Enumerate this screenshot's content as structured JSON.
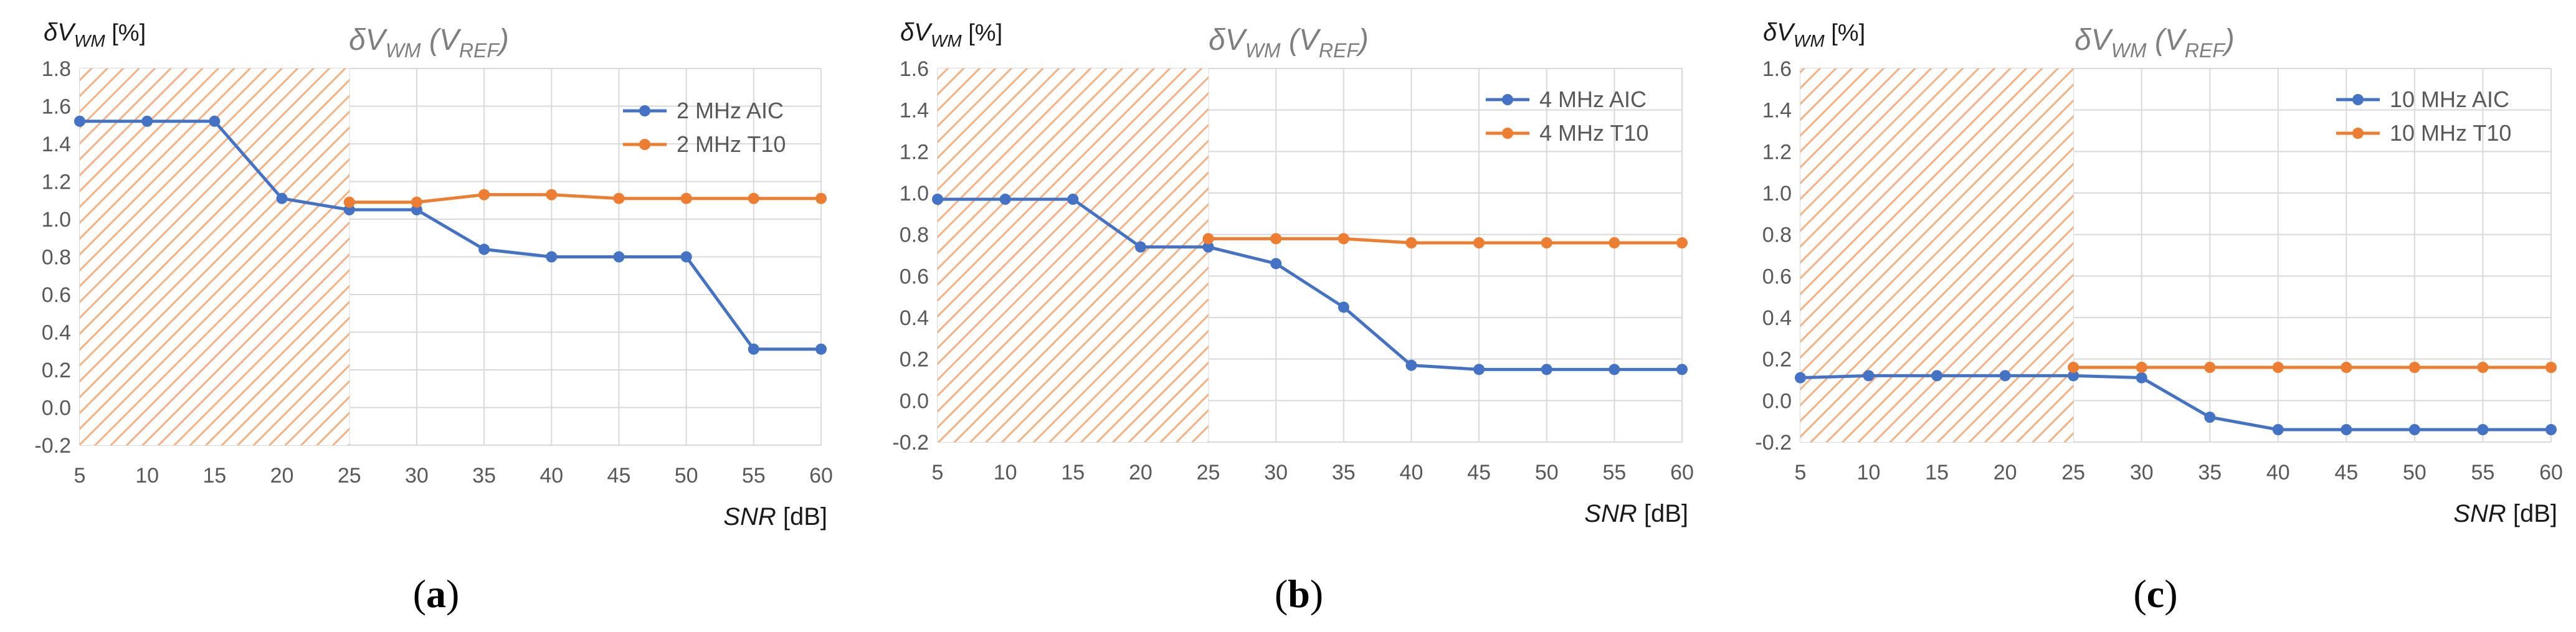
{
  "colors": {
    "aic": "#4472C4",
    "t10": "#ED7D31",
    "grid": "#D9D9D9",
    "hatch": "#F4B183"
  },
  "chart_data": [
    {
      "type": "line",
      "panel": "a",
      "caption": "(a)",
      "title": {
        "pre": "δV",
        "sub": "WM",
        "mid": "(V",
        "sub2": "REF",
        "post": ")"
      },
      "ylabel": {
        "pre": "δV",
        "sub": "WM",
        "unit": "[%]"
      },
      "xlabel": {
        "name": "SNR",
        "unit": "[dB]"
      },
      "x": [
        5,
        10,
        15,
        20,
        25,
        30,
        35,
        40,
        45,
        50,
        55,
        60
      ],
      "ylim": [
        -0.2,
        1.8
      ],
      "yticks": [
        "-0.2",
        "0.0",
        "0.2",
        "0.4",
        "0.6",
        "0.8",
        "1.0",
        "1.2",
        "1.4",
        "1.6",
        "1.8"
      ],
      "hatched_x_range": [
        5,
        25
      ],
      "series": [
        {
          "name": "2 MHz AIC",
          "color_key": "aic",
          "x": [
            5,
            10,
            15,
            20,
            25,
            30,
            35,
            40,
            45,
            50,
            55,
            60
          ],
          "values": [
            1.52,
            1.52,
            1.52,
            1.11,
            1.05,
            1.05,
            0.84,
            0.8,
            0.8,
            0.8,
            0.31,
            0.31
          ]
        },
        {
          "name": "2 MHz T10",
          "color_key": "t10",
          "x": [
            25,
            30,
            35,
            40,
            45,
            50,
            55,
            60
          ],
          "values": [
            1.09,
            1.09,
            1.13,
            1.13,
            1.11,
            1.11,
            1.11,
            1.11
          ]
        }
      ]
    },
    {
      "type": "line",
      "panel": "b",
      "caption": "(b)",
      "title": {
        "pre": "δV",
        "sub": "WM",
        "mid": "(V",
        "sub2": "REF",
        "post": ")"
      },
      "ylabel": {
        "pre": "δV",
        "sub": "WM",
        "unit": "[%]"
      },
      "xlabel": {
        "name": "SNR",
        "unit": "[dB]"
      },
      "x": [
        5,
        10,
        15,
        20,
        25,
        30,
        35,
        40,
        45,
        50,
        55,
        60
      ],
      "ylim": [
        -0.2,
        1.6
      ],
      "yticks": [
        "-0.2",
        "0.0",
        "0.2",
        "0.4",
        "0.6",
        "0.8",
        "1.0",
        "1.2",
        "1.4",
        "1.6"
      ],
      "hatched_x_range": [
        5,
        25
      ],
      "series": [
        {
          "name": "4 MHz AIC",
          "color_key": "aic",
          "x": [
            5,
            10,
            15,
            20,
            25,
            30,
            35,
            40,
            45,
            50,
            55,
            60
          ],
          "values": [
            0.97,
            0.97,
            0.97,
            0.74,
            0.74,
            0.66,
            0.45,
            0.17,
            0.15,
            0.15,
            0.15,
            0.15
          ]
        },
        {
          "name": "4 MHz T10",
          "color_key": "t10",
          "x": [
            25,
            30,
            35,
            40,
            45,
            50,
            55,
            60
          ],
          "values": [
            0.78,
            0.78,
            0.78,
            0.76,
            0.76,
            0.76,
            0.76,
            0.76
          ]
        }
      ]
    },
    {
      "type": "line",
      "panel": "c",
      "caption": "(c)",
      "title": {
        "pre": "δV",
        "sub": "WM",
        "mid": "(V",
        "sub2": "REF",
        "post": ")"
      },
      "ylabel": {
        "pre": "δV",
        "sub": "WM",
        "unit": "[%]"
      },
      "xlabel": {
        "name": "SNR",
        "unit": "[dB]"
      },
      "x": [
        5,
        10,
        15,
        20,
        25,
        30,
        35,
        40,
        45,
        50,
        55,
        60
      ],
      "ylim": [
        -0.2,
        1.6
      ],
      "yticks": [
        "-0.2",
        "0.0",
        "0.2",
        "0.4",
        "0.6",
        "0.8",
        "1.0",
        "1.2",
        "1.4",
        "1.6"
      ],
      "hatched_x_range": [
        5,
        25
      ],
      "series": [
        {
          "name": "10 MHz AIC",
          "color_key": "aic",
          "x": [
            5,
            10,
            15,
            20,
            25,
            30,
            35,
            40,
            45,
            50,
            55,
            60
          ],
          "values": [
            0.11,
            0.12,
            0.12,
            0.12,
            0.12,
            0.11,
            -0.08,
            -0.14,
            -0.14,
            -0.14,
            -0.14,
            -0.14
          ]
        },
        {
          "name": "10 MHz T10",
          "color_key": "t10",
          "x": [
            25,
            30,
            35,
            40,
            45,
            50,
            55,
            60
          ],
          "values": [
            0.16,
            0.16,
            0.16,
            0.16,
            0.16,
            0.16,
            0.16,
            0.16
          ]
        }
      ]
    }
  ]
}
